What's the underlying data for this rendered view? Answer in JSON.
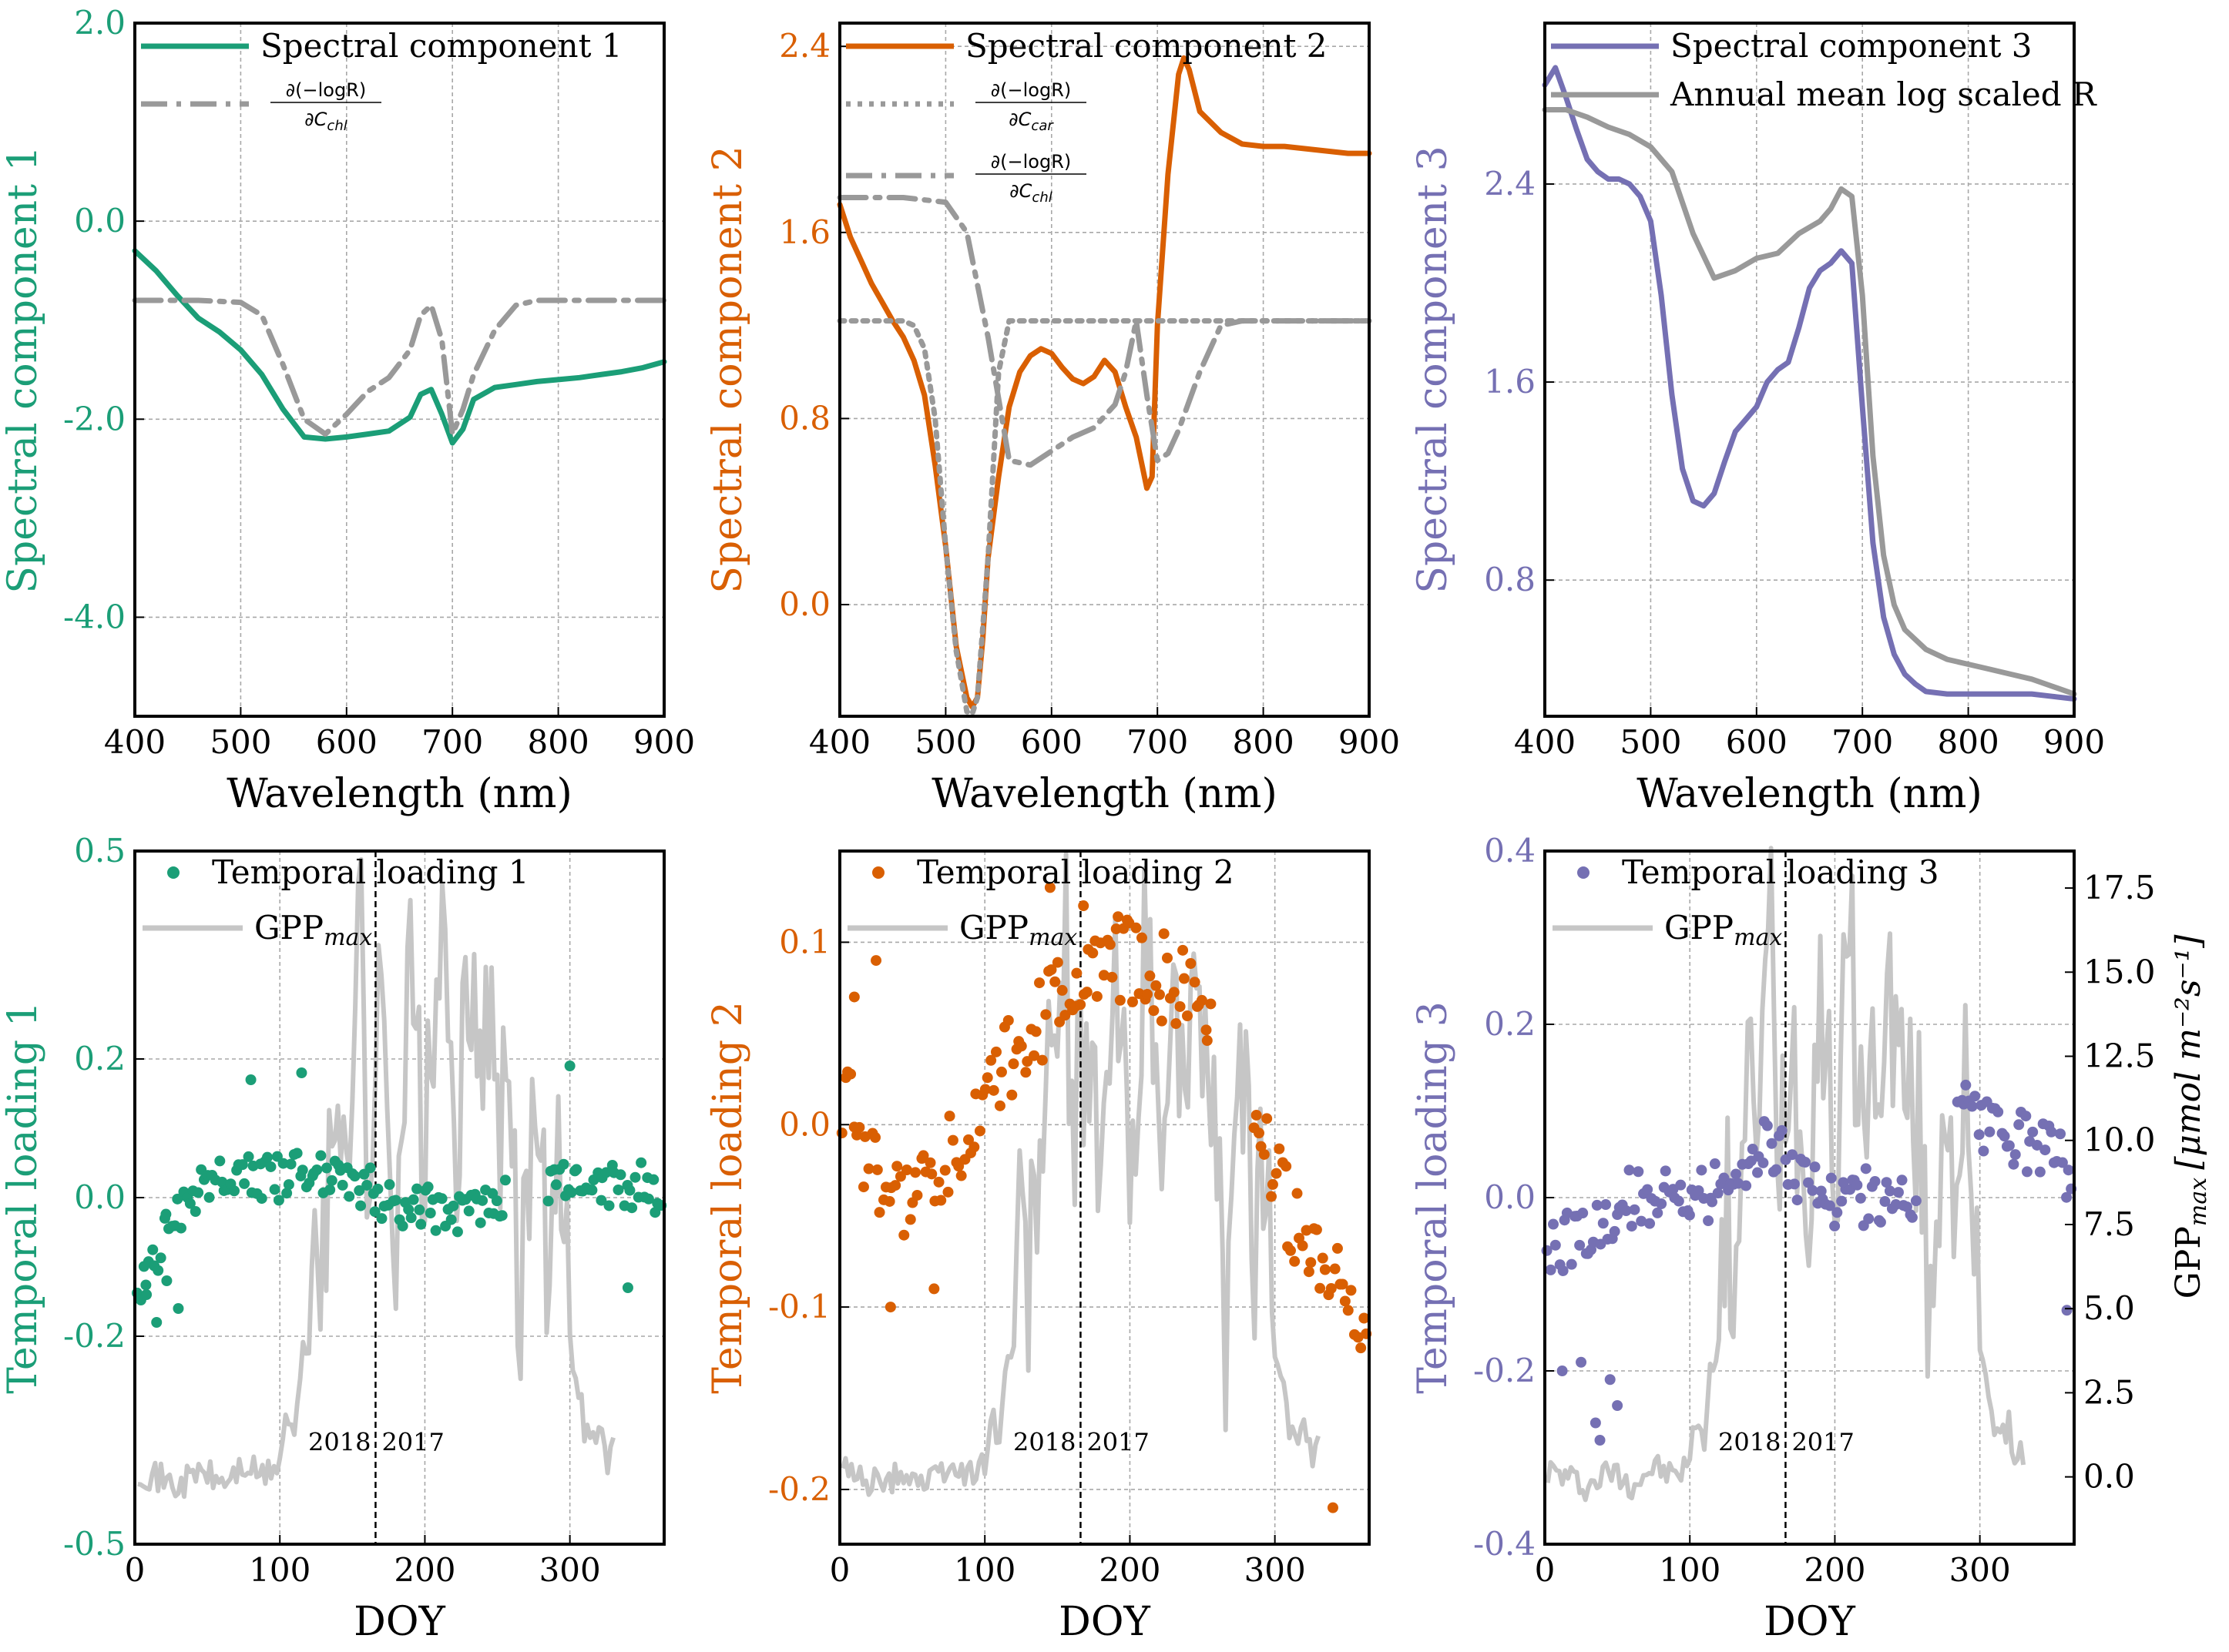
{
  "figure": {
    "gpp_axis_label": "GPP",
    "gpp_axis_sub": "max",
    "gpp_axis_units": "[μmol m⁻²s⁻¹]"
  },
  "chart_data": [
    {
      "type": "line",
      "panel": "spectral-1",
      "color": "#1b9e77",
      "xlabel": "Wavelength (nm)",
      "ylabel": "Spectral component 1",
      "xlim": [
        400,
        900
      ],
      "ylim": [
        -5.0,
        2.0
      ],
      "xticks": [
        400,
        500,
        600,
        700,
        800,
        900
      ],
      "xtick_labels": [
        "400",
        "500",
        "600",
        "700",
        "800",
        "900"
      ],
      "yticks": [
        -4.0,
        -2.0,
        0.0,
        2.0
      ],
      "ytick_labels": [
        "-4.0",
        "-2.0",
        "0.0",
        "2.0"
      ],
      "legend": [
        "Spectral component 1",
        "∂(−logR) / ∂C",
        "chl"
      ],
      "series": [
        {
          "name": "Spectral component 1",
          "style": "solid",
          "color": "#1b9e77",
          "x": [
            400,
            420,
            440,
            460,
            480,
            500,
            520,
            540,
            560,
            580,
            600,
            620,
            640,
            660,
            670,
            680,
            690,
            700,
            710,
            720,
            740,
            760,
            780,
            800,
            820,
            840,
            860,
            880,
            900
          ],
          "y": [
            -0.3,
            -0.5,
            -0.75,
            -0.98,
            -1.12,
            -1.3,
            -1.55,
            -1.9,
            -2.18,
            -2.2,
            -2.18,
            -2.15,
            -2.12,
            -1.98,
            -1.75,
            -1.7,
            -1.95,
            -2.24,
            -2.1,
            -1.8,
            -1.68,
            -1.65,
            -1.62,
            -1.6,
            -1.58,
            -1.55,
            -1.52,
            -1.48,
            -1.42
          ]
        },
        {
          "name": "dlogR/dCchl",
          "style": "dashdot",
          "color": "#999999",
          "x": [
            400,
            460,
            500,
            520,
            540,
            560,
            580,
            600,
            620,
            640,
            660,
            670,
            680,
            690,
            700,
            710,
            720,
            740,
            760,
            780,
            800,
            840,
            900
          ],
          "y": [
            -0.8,
            -0.8,
            -0.82,
            -0.95,
            -1.45,
            -2.0,
            -2.15,
            -1.95,
            -1.72,
            -1.58,
            -1.3,
            -0.95,
            -0.85,
            -1.2,
            -2.15,
            -1.9,
            -1.55,
            -1.1,
            -0.85,
            -0.8,
            -0.8,
            -0.8,
            -0.8
          ]
        }
      ]
    },
    {
      "type": "line",
      "panel": "spectral-2",
      "color": "#d95f02",
      "xlabel": "Wavelength (nm)",
      "ylabel": "Spectral component 2",
      "xlim": [
        400,
        900
      ],
      "ylim": [
        -0.48,
        2.5
      ],
      "xticks": [
        400,
        500,
        600,
        700,
        800,
        900
      ],
      "xtick_labels": [
        "400",
        "500",
        "600",
        "700",
        "800",
        "900"
      ],
      "yticks": [
        0.0,
        0.8,
        1.6,
        2.4
      ],
      "ytick_labels": [
        "0.0",
        "0.8",
        "1.6",
        "2.4"
      ],
      "legend": [
        "Spectral component 2",
        "∂(−logR) / ∂C",
        "car",
        "chl"
      ],
      "series": [
        {
          "name": "Spectral component 2",
          "style": "solid",
          "color": "#d95f02",
          "x": [
            400,
            410,
            420,
            430,
            440,
            450,
            460,
            470,
            480,
            490,
            500,
            510,
            520,
            525,
            530,
            535,
            540,
            550,
            560,
            570,
            580,
            590,
            600,
            610,
            620,
            630,
            640,
            650,
            660,
            670,
            680,
            690,
            695,
            700,
            710,
            720,
            725,
            730,
            740,
            760,
            780,
            800,
            820,
            840,
            860,
            880,
            900
          ],
          "y": [
            1.72,
            1.58,
            1.48,
            1.38,
            1.3,
            1.22,
            1.15,
            1.05,
            0.9,
            0.6,
            0.25,
            -0.18,
            -0.4,
            -0.44,
            -0.4,
            -0.15,
            0.2,
            0.55,
            0.85,
            1.0,
            1.07,
            1.1,
            1.08,
            1.02,
            0.97,
            0.95,
            0.98,
            1.05,
            1.0,
            0.85,
            0.72,
            0.5,
            0.55,
            1.2,
            1.85,
            2.28,
            2.35,
            2.3,
            2.12,
            2.03,
            1.98,
            1.97,
            1.97,
            1.96,
            1.95,
            1.94,
            1.94
          ]
        },
        {
          "name": "dlogR/dCcar",
          "style": "dotted",
          "color": "#999999",
          "x": [
            400,
            460,
            470,
            480,
            490,
            500,
            510,
            520,
            525,
            530,
            540,
            550,
            560,
            600,
            700,
            800,
            900
          ],
          "y": [
            1.22,
            1.22,
            1.2,
            1.1,
            0.8,
            0.25,
            -0.2,
            -0.46,
            -0.47,
            -0.4,
            0.2,
            1.0,
            1.22,
            1.22,
            1.22,
            1.22,
            1.22
          ]
        },
        {
          "name": "dlogR/dCchl",
          "style": "dashdot",
          "color": "#999999",
          "x": [
            400,
            460,
            500,
            520,
            540,
            560,
            580,
            600,
            620,
            640,
            660,
            670,
            680,
            690,
            700,
            710,
            720,
            740,
            760,
            780,
            800,
            840,
            900
          ],
          "y": [
            1.75,
            1.75,
            1.73,
            1.6,
            1.15,
            0.62,
            0.6,
            0.66,
            0.72,
            0.76,
            0.86,
            1.0,
            1.22,
            0.9,
            0.62,
            0.65,
            0.75,
            1.0,
            1.2,
            1.22,
            1.22,
            1.22,
            1.22
          ]
        }
      ]
    },
    {
      "type": "line",
      "panel": "spectral-3",
      "color": "#7570b3",
      "xlabel": "Wavelength (nm)",
      "ylabel": "Spectral component 3",
      "xlim": [
        400,
        900
      ],
      "ylim": [
        0.25,
        3.05
      ],
      "xticks": [
        400,
        500,
        600,
        700,
        800,
        900
      ],
      "xtick_labels": [
        "400",
        "500",
        "600",
        "700",
        "800",
        "900"
      ],
      "yticks": [
        0.8,
        1.6,
        2.4
      ],
      "ytick_labels": [
        "0.8",
        "1.6",
        "2.4"
      ],
      "legend": [
        "Spectral component 3",
        "Annual mean log scaled R"
      ],
      "series": [
        {
          "name": "Spectral component 3",
          "style": "solid",
          "color": "#7570b3",
          "x": [
            400,
            410,
            420,
            430,
            440,
            450,
            460,
            470,
            480,
            490,
            500,
            510,
            520,
            530,
            540,
            550,
            560,
            570,
            580,
            590,
            600,
            610,
            620,
            630,
            640,
            650,
            660,
            670,
            680,
            690,
            700,
            710,
            720,
            730,
            740,
            750,
            760,
            780,
            800,
            820,
            840,
            860,
            880,
            900
          ],
          "y": [
            2.8,
            2.87,
            2.75,
            2.62,
            2.5,
            2.45,
            2.42,
            2.42,
            2.4,
            2.35,
            2.25,
            1.95,
            1.55,
            1.25,
            1.12,
            1.1,
            1.15,
            1.28,
            1.4,
            1.45,
            1.5,
            1.6,
            1.65,
            1.68,
            1.82,
            1.98,
            2.05,
            2.08,
            2.13,
            2.08,
            1.5,
            0.95,
            0.65,
            0.5,
            0.42,
            0.38,
            0.35,
            0.34,
            0.34,
            0.34,
            0.34,
            0.34,
            0.33,
            0.32
          ]
        },
        {
          "name": "Annual mean log scaled R",
          "style": "solid",
          "color": "#999999",
          "x": [
            400,
            420,
            440,
            460,
            480,
            500,
            520,
            540,
            560,
            580,
            600,
            620,
            640,
            660,
            670,
            680,
            690,
            700,
            710,
            720,
            730,
            740,
            760,
            780,
            800,
            820,
            840,
            860,
            880,
            900
          ],
          "y": [
            2.7,
            2.7,
            2.67,
            2.63,
            2.6,
            2.55,
            2.45,
            2.2,
            2.02,
            2.05,
            2.1,
            2.12,
            2.2,
            2.25,
            2.3,
            2.38,
            2.35,
            1.95,
            1.3,
            0.9,
            0.7,
            0.6,
            0.52,
            0.48,
            0.46,
            0.44,
            0.42,
            0.4,
            0.37,
            0.34
          ]
        }
      ]
    },
    {
      "type": "scatter",
      "panel": "temporal-1",
      "color": "#1b9e77",
      "xlabel": "DOY",
      "ylabel": "Temporal loading 1",
      "xlim": [
        0,
        365
      ],
      "ylim": [
        -0.5,
        0.5
      ],
      "xticks": [
        0,
        100,
        200,
        300
      ],
      "xtick_labels": [
        "0",
        "100",
        "200",
        "300"
      ],
      "yticks": [
        -0.5,
        -0.2,
        0.0,
        0.2,
        0.5
      ],
      "ytick_labels": [
        "-0.5",
        "-0.2",
        "0.0",
        "0.2",
        "0.5"
      ],
      "legend": [
        "Temporal loading 1",
        "GPP",
        "max"
      ],
      "annotation_left": "2018",
      "annotation_right": "2017",
      "divider_doy": 166,
      "trend": {
        "x": [
          2,
          12,
          25,
          40,
          60,
          80,
          100,
          120,
          140,
          160,
          180,
          200,
          220,
          240,
          250,
          285,
          300,
          320,
          340,
          362
        ],
        "y": [
          -0.14,
          -0.1,
          -0.04,
          0.01,
          0.02,
          0.03,
          0.03,
          0.035,
          0.035,
          0.01,
          -0.01,
          -0.01,
          -0.02,
          -0.02,
          0.0,
          0.01,
          0.02,
          0.02,
          0.02,
          0.01
        ],
        "spread": 0.035
      },
      "outliers": {
        "x": [
          8,
          15,
          22,
          30,
          80,
          115,
          300,
          340
        ],
        "y": [
          -0.14,
          -0.18,
          -0.12,
          -0.16,
          0.17,
          0.18,
          0.19,
          -0.13
        ]
      }
    },
    {
      "type": "scatter",
      "panel": "temporal-2",
      "color": "#d95f02",
      "xlabel": "DOY",
      "ylabel": "Temporal loading 2",
      "xlim": [
        0,
        365
      ],
      "ylim": [
        -0.23,
        0.15
      ],
      "xticks": [
        0,
        100,
        200,
        300
      ],
      "xtick_labels": [
        "0",
        "100",
        "200",
        "300"
      ],
      "yticks": [
        -0.2,
        -0.1,
        0.0,
        0.1
      ],
      "ytick_labels": [
        "-0.2",
        "-0.1",
        "0.0",
        "0.1"
      ],
      "legend": [
        "Temporal loading 2",
        "GPP",
        "max"
      ],
      "annotation_left": "2018",
      "annotation_right": "2017",
      "divider_doy": 166,
      "trend": {
        "x": [
          2,
          15,
          30,
          45,
          60,
          80,
          100,
          120,
          140,
          160,
          180,
          200,
          220,
          240,
          250,
          285,
          300,
          320,
          340,
          362
        ],
        "y": [
          0.02,
          -0.01,
          -0.04,
          -0.05,
          -0.04,
          -0.01,
          0.01,
          0.04,
          0.06,
          0.07,
          0.09,
          0.09,
          0.08,
          0.08,
          0.07,
          0.02,
          -0.03,
          -0.07,
          -0.09,
          -0.1
        ],
        "spread": 0.025
      },
      "outliers": {
        "x": [
          10,
          25,
          35,
          65,
          145,
          168,
          340
        ],
        "y": [
          0.07,
          0.09,
          -0.1,
          -0.09,
          0.13,
          0.12,
          -0.21
        ]
      }
    },
    {
      "type": "scatter",
      "panel": "temporal-3",
      "color": "#7570b3",
      "xlabel": "DOY",
      "ylabel": "Temporal loading 3",
      "xlim": [
        0,
        365
      ],
      "ylim": [
        -0.4,
        0.4
      ],
      "xticks": [
        0,
        100,
        200,
        300
      ],
      "xtick_labels": [
        "0",
        "100",
        "200",
        "300"
      ],
      "yticks": [
        -0.4,
        -0.2,
        0.0,
        0.2,
        0.4
      ],
      "ytick_labels": [
        "-0.4",
        "-0.2",
        "0.0",
        "0.2",
        "0.4"
      ],
      "legend": [
        "Temporal loading 3",
        "GPP",
        "max"
      ],
      "annotation_left": "2018",
      "annotation_right": "2017",
      "divider_doy": 166,
      "trend": {
        "x": [
          2,
          15,
          30,
          45,
          60,
          80,
          100,
          120,
          140,
          160,
          180,
          200,
          220,
          240,
          250,
          290,
          300,
          320,
          340,
          362
        ],
        "y": [
          -0.06,
          -0.05,
          -0.04,
          -0.02,
          0.0,
          0.0,
          -0.01,
          0.01,
          0.05,
          0.06,
          0.02,
          0.0,
          0.0,
          -0.01,
          -0.01,
          0.1,
          0.08,
          0.07,
          0.06,
          0.03
        ],
        "spread": 0.035
      },
      "outliers": {
        "x": [
          12,
          25,
          35,
          38,
          45,
          50,
          360
        ],
        "y": [
          -0.2,
          -0.19,
          -0.26,
          -0.28,
          -0.21,
          -0.24,
          -0.13
        ]
      }
    },
    {
      "type": "line",
      "panel": "gpp-max",
      "name": "GPP max",
      "color": "#c6c6c6",
      "ylim": [
        -2.0,
        18.6
      ],
      "yticks": [
        0.0,
        2.5,
        5.0,
        7.5,
        10.0,
        12.5,
        15.0,
        17.5
      ],
      "ytick_labels": [
        "0.0",
        "2.5",
        "5.0",
        "7.5",
        "10.0",
        "12.5",
        "15.0",
        "17.5"
      ],
      "x": [
        2,
        15,
        30,
        45,
        60,
        75,
        90,
        100,
        105,
        110,
        115,
        120,
        125,
        130,
        140,
        150,
        155,
        160,
        170,
        180,
        190,
        200,
        210,
        220,
        230,
        240,
        250,
        260,
        265,
        270,
        280,
        285,
        290,
        300,
        305,
        310,
        315,
        320,
        325,
        330
      ],
      "y": [
        0.2,
        0.0,
        -0.3,
        0.2,
        -0.2,
        0.3,
        0.0,
        0.5,
        2.0,
        1.0,
        3.5,
        4.0,
        8.0,
        6.0,
        11.0,
        12.0,
        18.0,
        9.0,
        14.0,
        8.0,
        15.0,
        9.0,
        16.0,
        10.0,
        13.0,
        14.0,
        11.0,
        10.0,
        3.0,
        9.0,
        12.0,
        6.0,
        11.0,
        4.0,
        3.0,
        1.5,
        1.0,
        1.5,
        0.5,
        0.8
      ]
    }
  ]
}
